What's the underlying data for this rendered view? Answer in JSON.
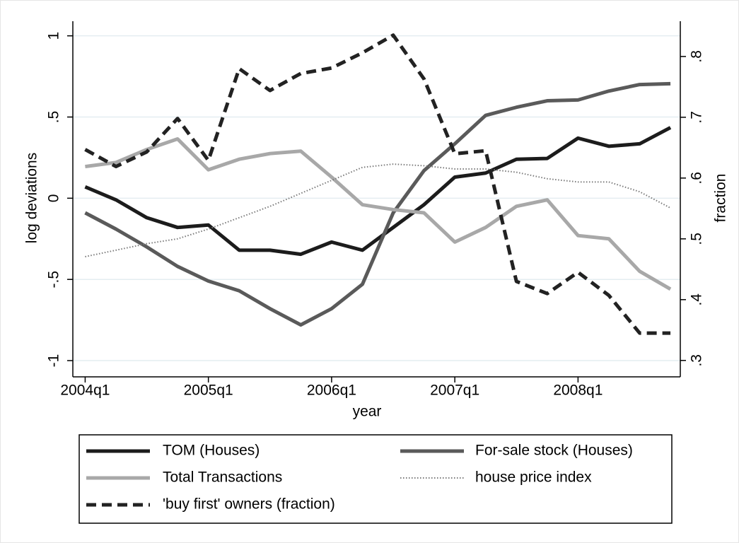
{
  "chart_data": {
    "type": "line",
    "x_label": "year",
    "y_label": "log deviations",
    "y2_label": "fraction",
    "x": [
      2004,
      2004.25,
      2004.5,
      2004.75,
      2005,
      2005.25,
      2005.5,
      2005.75,
      2006,
      2006.25,
      2006.5,
      2006.75,
      2007,
      2007.25,
      2007.5,
      2007.75,
      2008,
      2008.25,
      2008.5,
      2008.75
    ],
    "xlim": [
      2003.9,
      2008.83
    ],
    "xticks": [
      {
        "value": 2004,
        "label": "2004q1"
      },
      {
        "value": 2005,
        "label": "2005q1"
      },
      {
        "value": 2006,
        "label": "2006q1"
      },
      {
        "value": 2007,
        "label": "2007q1"
      },
      {
        "value": 2008,
        "label": "2008q1"
      }
    ],
    "ylim": [
      -1.1,
      1.09
    ],
    "yticks": [
      -1,
      {
        "value": -0.5,
        "label": "-.5"
      },
      0,
      {
        "value": 0.5,
        "label": ".5"
      },
      1
    ],
    "y2lim": [
      0.273,
      0.858
    ],
    "y2ticks": [
      {
        "value": 0.3,
        "label": ".3"
      },
      {
        "value": 0.4,
        "label": ".4"
      },
      {
        "value": 0.5,
        "label": ".5"
      },
      {
        "value": 0.6,
        "label": ".6"
      },
      {
        "value": 0.7,
        "label": ".7"
      },
      {
        "value": 0.8,
        "label": ".8"
      }
    ],
    "grid": true,
    "series": [
      {
        "name": "TOM (Houses)",
        "color": "#1c1c1c",
        "style": "solid",
        "values": [
          0.07,
          -0.01,
          -0.12,
          -0.18,
          -0.165,
          -0.32,
          -0.32,
          -0.345,
          -0.27,
          -0.32,
          -0.18,
          -0.04,
          0.13,
          0.155,
          0.24,
          0.245,
          0.37,
          0.32,
          0.335,
          0.435
        ]
      },
      {
        "name": "For-sale stock (Houses)",
        "color": "#5a5a5a",
        "style": "solid",
        "values": [
          -0.09,
          -0.19,
          -0.3,
          -0.42,
          -0.51,
          -0.57,
          -0.68,
          -0.78,
          -0.68,
          -0.53,
          -0.09,
          0.17,
          0.335,
          0.51,
          0.56,
          0.6,
          0.605,
          0.66,
          0.7,
          0.705
        ]
      },
      {
        "name": "Total Transactions",
        "color": "#a8a8a8",
        "style": "solid",
        "values": [
          0.195,
          0.22,
          0.3,
          0.365,
          0.175,
          0.24,
          0.275,
          0.29,
          0.13,
          -0.04,
          -0.07,
          -0.09,
          -0.27,
          -0.18,
          -0.05,
          -0.01,
          -0.23,
          -0.25,
          -0.45,
          -0.56
        ]
      },
      {
        "name": "house price index",
        "color": "#7a7a7a",
        "style": "dotted",
        "values": [
          -0.36,
          -0.32,
          -0.28,
          -0.25,
          -0.19,
          -0.12,
          -0.05,
          0.03,
          0.11,
          0.19,
          0.21,
          0.2,
          0.18,
          0.18,
          0.16,
          0.12,
          0.1,
          0.1,
          0.04,
          -0.06
        ]
      },
      {
        "name": " 'buy first' owners (fraction)",
        "color": "#222222",
        "style": "dashed",
        "axis": "y2",
        "values": [
          0.647,
          0.619,
          0.643,
          0.698,
          0.629,
          0.78,
          0.744,
          0.772,
          0.781,
          0.806,
          0.835,
          0.763,
          0.64,
          0.645,
          0.43,
          0.41,
          0.445,
          0.407,
          0.345,
          0.345
        ]
      }
    ]
  }
}
